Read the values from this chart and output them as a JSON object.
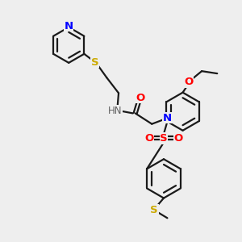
{
  "bg_color": "#eeeeee",
  "bond_color": "#1a1a1a",
  "N_color": "#0000ff",
  "O_color": "#ff0000",
  "S_color": "#ccaa00",
  "H_color": "#606060",
  "line_width": 1.6,
  "font_size": 8.5,
  "fig_w": 3.0,
  "fig_h": 3.0,
  "dpi": 100,
  "xlim": [
    0,
    10
  ],
  "ylim": [
    0,
    10
  ]
}
